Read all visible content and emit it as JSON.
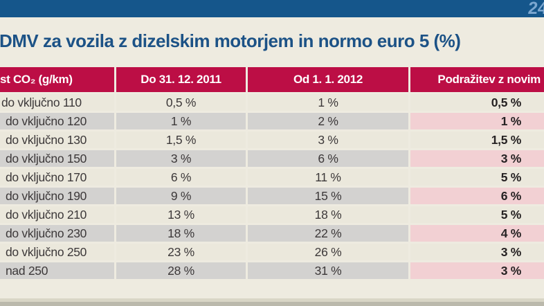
{
  "masthead": {
    "page_number": "24"
  },
  "title": "DMV za vozila z dizelskim motorjem in normo euro 5 (%)",
  "table": {
    "columns": [
      {
        "label": "st CO₂ (g/km)"
      },
      {
        "label": "Do 31. 12. 2011"
      },
      {
        "label": "Od 1. 1. 2012"
      },
      {
        "label": "Podražitev z novim"
      }
    ],
    "rows": [
      {
        "label": "do vključno 110",
        "until_2011": "0,5 %",
        "from_2012": "1 %",
        "increase": "0,5 %"
      },
      {
        "label": "do vključno 120",
        "until_2011": "1 %",
        "from_2012": "2 %",
        "increase": "1 %"
      },
      {
        "label": "do vključno 130",
        "until_2011": "1,5 %",
        "from_2012": "3 %",
        "increase": "1,5 %"
      },
      {
        "label": "do vključno 150",
        "until_2011": "3 %",
        "from_2012": "6 %",
        "increase": "3 %"
      },
      {
        "label": "do vključno 170",
        "until_2011": "6 %",
        "from_2012": "11 %",
        "increase": "5 %"
      },
      {
        "label": "do vključno 190",
        "until_2011": "9 %",
        "from_2012": "15 %",
        "increase": "6 %"
      },
      {
        "label": "do vključno 210",
        "until_2011": "13 %",
        "from_2012": "18 %",
        "increase": "5 %"
      },
      {
        "label": "do vključno 230",
        "until_2011": "18 %",
        "from_2012": "22 %",
        "increase": "4 %"
      },
      {
        "label": "do vključno 250",
        "until_2011": "23 %",
        "from_2012": "26 %",
        "increase": "3 %"
      },
      {
        "label": "nad 250",
        "until_2011": "28 %",
        "from_2012": "31 %",
        "increase": "3 %"
      }
    ]
  },
  "chart_data": {
    "type": "table",
    "title": "DMV za vozila z dizelskim motorjem in normo euro 5 (%)",
    "columns": [
      "st CO₂ (g/km)",
      "Do 31. 12. 2011",
      "Od 1. 1. 2012",
      "Podražitev z novim"
    ],
    "rows": [
      [
        "do vključno 110",
        "0,5 %",
        "1 %",
        "0,5 %"
      ],
      [
        "do vključno 120",
        "1 %",
        "2 %",
        "1 %"
      ],
      [
        "do vključno 130",
        "1,5 %",
        "3 %",
        "1,5 %"
      ],
      [
        "do vključno 150",
        "3 %",
        "6 %",
        "3 %"
      ],
      [
        "do vključno 170",
        "6 %",
        "11 %",
        "5 %"
      ],
      [
        "do vključno 190",
        "9 %",
        "15 %",
        "6 %"
      ],
      [
        "do vključno 210",
        "13 %",
        "18 %",
        "5 %"
      ],
      [
        "do vključno 230",
        "18 %",
        "22 %",
        "4 %"
      ],
      [
        "do vključno 250",
        "23 %",
        "26 %",
        "3 %"
      ],
      [
        "nad 250",
        "28 %",
        "31 %",
        "3 %"
      ]
    ]
  },
  "colors": {
    "top_bar": "#15568b",
    "logo_blue": "#7ca7d0",
    "title_text": "#1c5286",
    "page_bg": "#eeebe0",
    "header_bg": "#bc0e45",
    "header_text": "#ffffff",
    "row_cream": "#ebe8dc",
    "row_grey": "#d3d2d0",
    "row_pink": "#f2d0d3",
    "body_text": "#3c3839",
    "strip_light": "#d9d6c6",
    "strip_dark": "#bbb9ac"
  }
}
